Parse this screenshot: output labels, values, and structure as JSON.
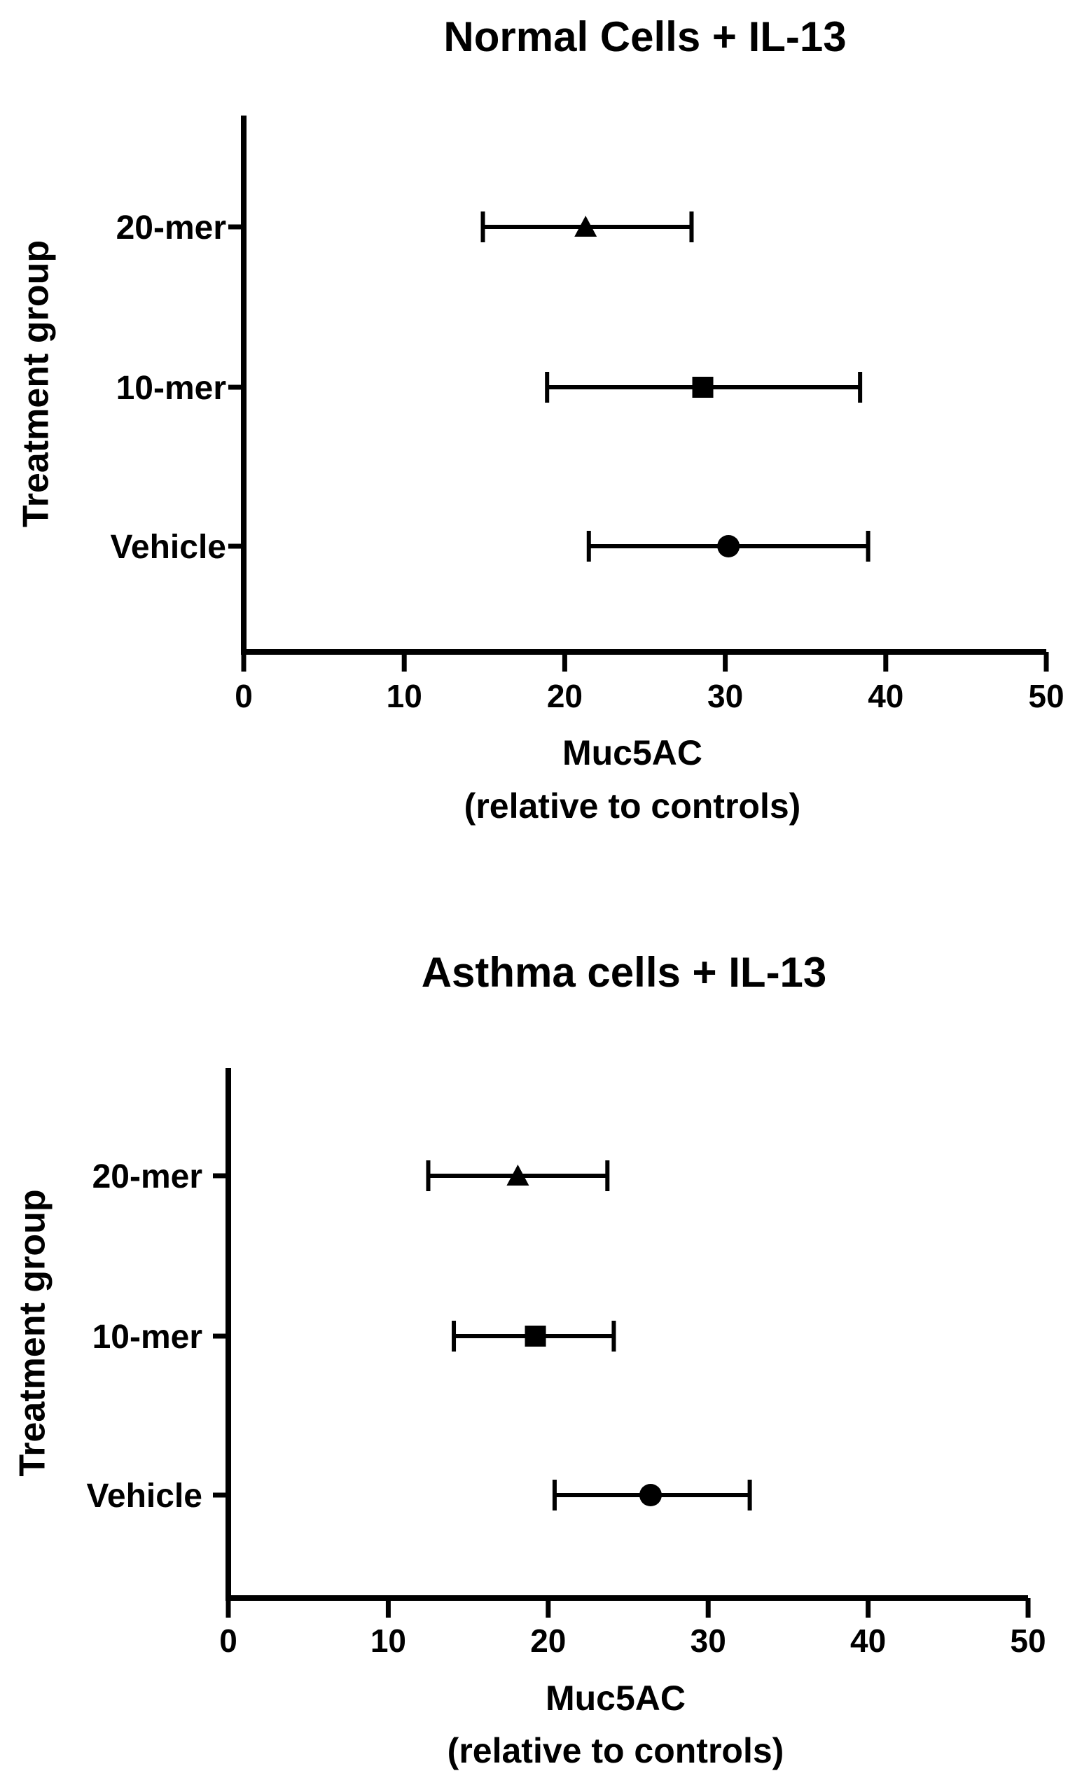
{
  "chart_data": [
    {
      "type": "scatter",
      "title": "Normal Cells + IL-13",
      "xlabel": [
        "Muc5AC",
        "(relative to controls)"
      ],
      "ylabel": "Treatment group",
      "xlim": [
        0,
        50
      ],
      "xticks": [
        0,
        10,
        20,
        30,
        40,
        50
      ],
      "categories": [
        "20-mer",
        "10-mer",
        "Vehicle"
      ],
      "points": [
        {
          "category": "20-mer",
          "marker": "triangle",
          "x": 21.3,
          "low": 14.9,
          "high": 27.9
        },
        {
          "category": "10-mer",
          "marker": "square",
          "x": 28.6,
          "low": 18.9,
          "high": 38.4
        },
        {
          "category": "Vehicle",
          "marker": "circle",
          "x": 30.2,
          "low": 21.5,
          "high": 38.9
        }
      ],
      "grid": false
    },
    {
      "type": "scatter",
      "title": "Asthma cells + IL-13",
      "xlabel": [
        "Muc5AC",
        "(relative to controls)"
      ],
      "ylabel": "Treatment group",
      "xlim": [
        0,
        50
      ],
      "xticks": [
        0,
        10,
        20,
        30,
        40,
        50
      ],
      "categories": [
        "20-mer",
        "10-mer",
        "Vehicle"
      ],
      "points": [
        {
          "category": "20-mer",
          "marker": "triangle",
          "x": 18.1,
          "low": 12.5,
          "high": 23.7
        },
        {
          "category": "10-mer",
          "marker": "square",
          "x": 19.2,
          "low": 14.1,
          "high": 24.1
        },
        {
          "category": "Vehicle",
          "marker": "circle",
          "x": 26.4,
          "low": 20.4,
          "high": 32.6
        }
      ],
      "grid": false
    }
  ]
}
